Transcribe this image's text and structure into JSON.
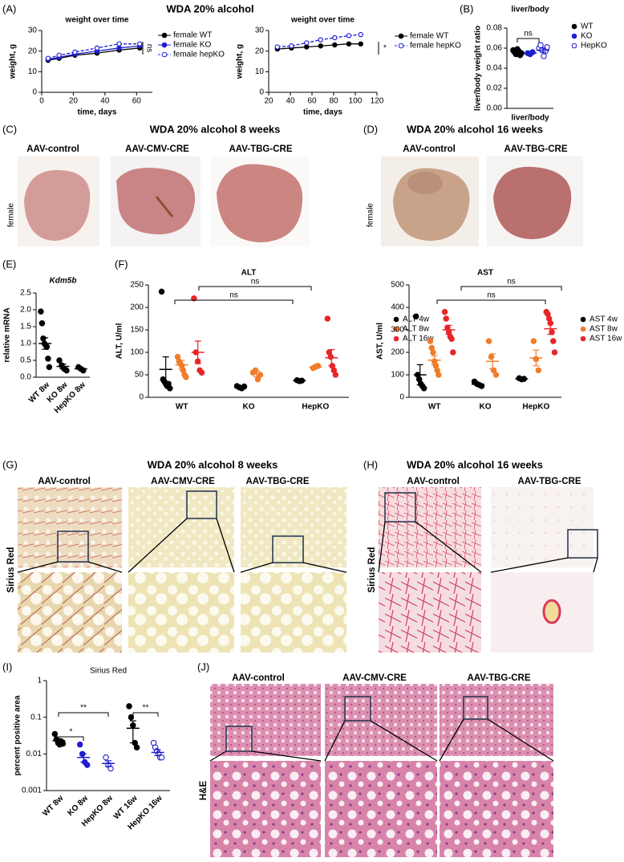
{
  "figure": {
    "panels": [
      "(A)",
      "(B)",
      "(C)",
      "(D)",
      "(E)",
      "(F)",
      "(G)",
      "(H)",
      "(I)",
      "(J)"
    ],
    "headline_a": "WDA 20% alcohol",
    "c": {
      "title": "WDA 20% alcohol 8 weeks",
      "labels": [
        "AAV-control",
        "AAV-CMV-CRE",
        "AAV-TBG-CRE"
      ],
      "row_label": "female"
    },
    "d": {
      "title": "WDA 20% alcohol 16 weeks",
      "labels": [
        "AAV-control",
        "AAV-TBG-CRE"
      ],
      "row_label": "female"
    },
    "g": {
      "title": "WDA 20% alcohol 8 weeks",
      "labels": [
        "AAV-control",
        "AAV-CMV-CRE",
        "AAV-TBG-CRE"
      ],
      "row_label": "Sirius Red"
    },
    "h": {
      "title": "WDA 20% alcohol 16 weeks",
      "labels": [
        "AAV-control",
        "AAV-TBG-CRE"
      ],
      "row_label": "Sirius Red"
    },
    "j": {
      "labels": [
        "AAV-control",
        "AAV-CMV-CRE",
        "AAV-TBG-CRE"
      ],
      "row_label": "H&E"
    }
  },
  "chart_data": [
    {
      "type": "line",
      "title": "weight over time",
      "x_label": "time, days",
      "y_label": "weight, g",
      "x": [
        4,
        11,
        21,
        35,
        49,
        62
      ],
      "xlim": [
        0,
        70
      ],
      "xticks": [
        0,
        20,
        40,
        60
      ],
      "ylim": [
        0,
        30
      ],
      "yticks": [
        0,
        10,
        20,
        30
      ],
      "annotation": "ns",
      "series": [
        {
          "name": "female WT",
          "color": "#000000",
          "marker": "filled",
          "dashed": false,
          "values": [
            15.5,
            16.5,
            18,
            19,
            20.5,
            21.5
          ]
        },
        {
          "name": "female KO",
          "color": "#1f1fd0",
          "marker": "filled",
          "dashed": false,
          "values": [
            16,
            17,
            18.5,
            20,
            21.5,
            22.5
          ]
        },
        {
          "name": "female hepKO",
          "color": "#1f1fd0",
          "marker": "open",
          "dashed": true,
          "values": [
            16.5,
            18,
            19.5,
            21.5,
            23.5,
            23.5
          ]
        }
      ]
    },
    {
      "type": "line",
      "title": "weight over time",
      "x_label": "time, days",
      "y_label": "weight, g",
      "x": [
        28,
        41,
        55,
        68,
        81,
        94,
        105
      ],
      "xlim": [
        20,
        120
      ],
      "xticks": [
        20,
        40,
        60,
        80,
        100,
        120
      ],
      "ylim": [
        0,
        30
      ],
      "yticks": [
        0,
        10,
        20,
        30
      ],
      "annotation": "*",
      "series": [
        {
          "name": "female WT",
          "color": "#000000",
          "marker": "filled",
          "dashed": false,
          "values": [
            21,
            21.5,
            22,
            22.5,
            23,
            23.5,
            23.5
          ]
        },
        {
          "name": "female hepKO",
          "color": "#1f1fd0",
          "marker": "open",
          "dashed": true,
          "values": [
            22,
            22.5,
            24,
            25.5,
            26.5,
            27.5,
            28
          ]
        }
      ]
    },
    {
      "type": "dot",
      "title": "liver/body",
      "y_label": "liver/body weight ratio",
      "categories": [
        "liver/body"
      ],
      "ylim": [
        0,
        0.08
      ],
      "yticks": [
        {
          "value": 0,
          "label": "0.00"
        },
        {
          "value": 0.02,
          "label": "0.02"
        },
        {
          "value": 0.04,
          "label": "0.04"
        },
        {
          "value": 0.06,
          "label": "0.06"
        },
        {
          "value": 0.08,
          "label": "0.08"
        }
      ],
      "annotations": [
        "ns"
      ],
      "series": [
        {
          "name": "WT",
          "color": "#000000",
          "marker": "filled",
          "values": [
            [
              0.058,
              0.056,
              0.054,
              0.059,
              0.057,
              0.053,
              0.055
            ]
          ],
          "means": [
            0.056
          ],
          "errors": [
            0.001
          ]
        },
        {
          "name": "KO",
          "color": "#1f1fd0",
          "marker": "filled",
          "values": [
            [
              0.055,
              0.054,
              0.056
            ]
          ],
          "means": [
            0.055
          ],
          "errors": [
            0.001
          ]
        },
        {
          "name": "HepKO",
          "color": "#1f1fd0",
          "marker": "open",
          "values": [
            [
              0.06,
              0.063,
              0.058,
              0.052,
              0.057,
              0.061
            ]
          ],
          "means": [
            0.058
          ],
          "errors": [
            0.002
          ]
        }
      ]
    },
    {
      "type": "dot",
      "title": "Kdm5b",
      "y_label": "relative mRNA",
      "categories": [
        "WT 8w",
        "KO 8w",
        "HepKO 8w"
      ],
      "ylim": [
        0,
        2.5
      ],
      "yticks": [
        {
          "value": 0,
          "label": "0.0"
        },
        0.5,
        {
          "value": 1,
          "label": "1.0"
        },
        1.5,
        {
          "value": 2,
          "label": "2.0"
        },
        2.5
      ],
      "series": [
        {
          "color": "#000000",
          "marker": "filled",
          "values": [
            [
              1.95,
              1.6,
              1.15,
              1.0,
              0.95,
              0.9,
              0.55,
              0.3
            ],
            [
              0.5,
              0.35,
              0.25,
              0.2
            ],
            [
              0.3,
              0.25,
              0.2
            ]
          ],
          "means": [
            1.0,
            0.32,
            0.25
          ],
          "errors": [
            0.17,
            0.07,
            0.03
          ]
        }
      ]
    },
    {
      "type": "dot",
      "title": "ALT",
      "y_label": "ALT, U/ml",
      "categories": [
        "WT",
        "KO",
        "HepKO"
      ],
      "ylim": [
        0,
        250
      ],
      "yticks": [
        0,
        50,
        100,
        150,
        200,
        250
      ],
      "annotations": [
        "ns",
        "ns"
      ],
      "series": [
        {
          "name": "ALT 4w",
          "color": "#000000",
          "marker": "filled",
          "values": [
            [
              235,
              40,
              35,
              30,
              25,
              30,
              20
            ],
            [
              25,
              22,
              20,
              24
            ],
            [
              38,
              36,
              37
            ]
          ],
          "means": [
            62,
            22,
            37
          ],
          "errors": [
            28,
            2,
            1
          ]
        },
        {
          "name": "ALT 8w",
          "color": "#f07d2a",
          "marker": "filled",
          "values": [
            [
              90,
              80,
              75,
              70,
              60,
              50,
              45
            ],
            [
              55,
              60,
              40,
              50
            ],
            [
              65,
              68,
              70
            ]
          ],
          "means": [
            72,
            52,
            67
          ],
          "errors": [
            10,
            6,
            3
          ]
        },
        {
          "name": "ALT 16w",
          "color": "#e8262a",
          "marker": "filled",
          "values": [
            [
              220,
              100,
              80,
              60,
              55
            ],
            null,
            [
              175,
              100,
              90,
              70,
              60,
              50
            ]
          ],
          "means": [
            100,
            null,
            88
          ],
          "errors": [
            25,
            null,
            18
          ]
        }
      ]
    },
    {
      "type": "dot",
      "title": "AST",
      "y_label": "AST, U/ml",
      "categories": [
        "WT",
        "KO",
        "HepKO"
      ],
      "ylim": [
        0,
        500
      ],
      "yticks": [
        0,
        100,
        200,
        300,
        400,
        500
      ],
      "annotations": [
        "ns",
        "ns"
      ],
      "series": [
        {
          "name": "AST 4w",
          "color": "#000000",
          "marker": "filled",
          "values": [
            [
              360,
              100,
              80,
              60,
              50,
              40
            ],
            [
              70,
              60,
              55,
              50
            ],
            [
              85,
              80,
              82
            ]
          ],
          "means": [
            100,
            58,
            82
          ],
          "errors": [
            45,
            5,
            2
          ]
        },
        {
          "name": "AST 8w",
          "color": "#f07d2a",
          "marker": "filled",
          "values": [
            [
              250,
              220,
              200,
              160,
              140,
              120,
              100
            ],
            [
              250,
              180,
              120,
              100
            ],
            [
              250,
              170,
              120
            ]
          ],
          "means": [
            165,
            160,
            175
          ],
          "errors": [
            20,
            33,
            35
          ]
        },
        {
          "name": "AST 16w",
          "color": "#e8262a",
          "marker": "filled",
          "values": [
            [
              380,
              350,
              310,
              290,
              270,
              260,
              200
            ],
            null,
            [
              380,
              370,
              350,
              330,
              290,
              250,
              200
            ]
          ],
          "means": [
            300,
            null,
            305
          ],
          "errors": [
            20,
            null,
            25
          ]
        }
      ]
    },
    {
      "type": "dot",
      "title": "Sirius Red",
      "y_label": "percent positive area",
      "log": true,
      "categories": [
        "WT 8w",
        "KO 8w",
        "HepKO 8w",
        "WT 16w",
        "HepKO 16w"
      ],
      "ylim": [
        0.001,
        1
      ],
      "yticks": [
        0.001,
        0.01,
        0.1,
        1
      ],
      "annotations": [
        "*",
        "**",
        "**"
      ],
      "series": [
        {
          "color": "#000000",
          "marker": "filled",
          "values": [
            [
              0.035,
              0.025,
              0.02,
              0.018,
              0.022,
              0.019
            ],
            null,
            null,
            [
              0.2,
              0.1,
              0.06,
              0.02,
              0.015
            ],
            null
          ],
          "means": [
            0.023,
            null,
            null,
            0.05,
            null
          ],
          "errors": [
            0.003,
            null,
            null,
            0.03,
            null
          ]
        },
        {
          "color": "#1f1fd0",
          "marker": "filled",
          "values": [
            null,
            [
              0.018,
              0.01,
              0.006,
              0.005
            ],
            null,
            null,
            null
          ],
          "means": [
            null,
            0.008,
            null,
            null,
            null
          ],
          "errors": [
            null,
            0.002,
            null,
            null,
            null
          ]
        },
        {
          "color": "#1f1fd0",
          "marker": "open",
          "values": [
            null,
            null,
            [
              0.008,
              0.005,
              0.004
            ],
            null,
            [
              0.02,
              0.015,
              0.012,
              0.01,
              0.008,
              0.008
            ]
          ],
          "means": [
            null,
            null,
            0.0055,
            null,
            0.011
          ],
          "errors": [
            null,
            null,
            0.001,
            null,
            0.002
          ]
        }
      ]
    }
  ]
}
